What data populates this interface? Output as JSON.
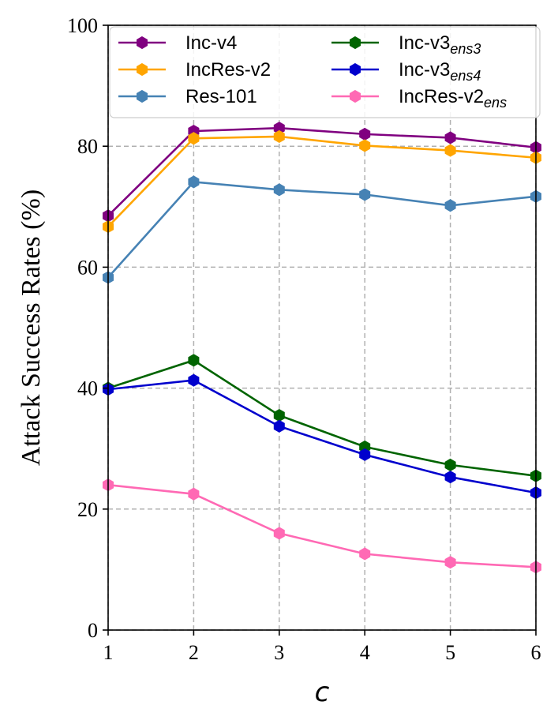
{
  "chart_data": {
    "type": "line",
    "title": "",
    "xlabel": "c",
    "ylabel": "Attack Success Rates (%)",
    "x": [
      1,
      2,
      3,
      4,
      5,
      6
    ],
    "xlim": [
      1,
      6
    ],
    "ylim": [
      0,
      100
    ],
    "yticks": [
      0,
      20,
      40,
      60,
      80,
      100
    ],
    "grid": true,
    "legend_position": "top",
    "marker": "hexagon",
    "series": [
      {
        "name": "Inc-v4",
        "base": "Inc-v4",
        "sub": "",
        "color": "#800080",
        "values": [
          68.5,
          82.5,
          83.0,
          82.0,
          81.4,
          79.8
        ]
      },
      {
        "name": "IncRes-v2",
        "base": "IncRes-v2",
        "sub": "",
        "color": "#FFA500",
        "values": [
          66.7,
          81.3,
          81.6,
          80.1,
          79.3,
          78.1
        ]
      },
      {
        "name": "Res-101",
        "base": "Res-101",
        "sub": "",
        "color": "#4682B4",
        "values": [
          58.3,
          74.1,
          72.8,
          72.0,
          70.2,
          71.7
        ]
      },
      {
        "name": "Inc-v3ens3",
        "base": "Inc-v3",
        "sub": "ens3",
        "color": "#006400",
        "values": [
          40.0,
          44.6,
          35.5,
          30.3,
          27.3,
          25.5
        ]
      },
      {
        "name": "Inc-v3ens4",
        "base": "Inc-v3",
        "sub": "ens4",
        "color": "#0000CD",
        "values": [
          39.8,
          41.3,
          33.7,
          29.0,
          25.3,
          22.7
        ]
      },
      {
        "name": "IncRes-v2ens",
        "base": "IncRes-v2",
        "sub": "ens",
        "color": "#FF69B4",
        "values": [
          24.0,
          22.5,
          16.0,
          12.6,
          11.2,
          10.4
        ]
      }
    ]
  }
}
